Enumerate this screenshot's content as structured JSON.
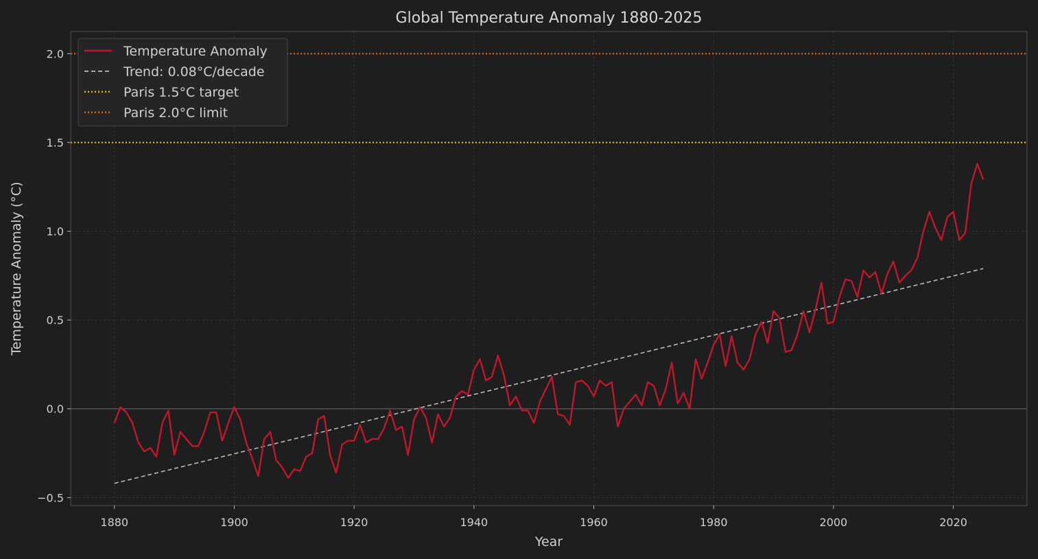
{
  "chart_data": {
    "type": "line",
    "title": "Global Temperature Anomaly 1880-2025",
    "xlabel": "Year",
    "ylabel": "Temperature Anomaly (°C)",
    "xlim": [
      1872.7,
      2032.3
    ],
    "ylim": [
      -0.545,
      2.125
    ],
    "x_ticks": [
      1880,
      1900,
      1920,
      1940,
      1960,
      1980,
      2000,
      2020
    ],
    "y_ticks": [
      -0.5,
      0.0,
      0.5,
      1.0,
      1.5,
      2.0
    ],
    "y_tick_labels": [
      "−0.5",
      "0.0",
      "0.5",
      "1.0",
      "1.5",
      "2.0"
    ],
    "grid": true,
    "legend_position": "top-left",
    "colors": {
      "anomaly": "#c0182a",
      "trend": "#bdbdbd",
      "paris15": "#e6b012",
      "paris20": "#e0620f",
      "zero_line": "#6a6a6a",
      "background": "#1e1e1e",
      "grid": "#333333",
      "frame": "#4a4a4a"
    },
    "series": [
      {
        "name": "Temperature Anomaly",
        "start_year": 1880,
        "values": [
          -0.08,
          0.01,
          -0.02,
          -0.08,
          -0.19,
          -0.24,
          -0.22,
          -0.27,
          -0.08,
          -0.01,
          -0.26,
          -0.13,
          -0.17,
          -0.21,
          -0.21,
          -0.13,
          -0.02,
          -0.02,
          -0.18,
          -0.08,
          0.01,
          -0.06,
          -0.19,
          -0.28,
          -0.38,
          -0.17,
          -0.13,
          -0.29,
          -0.33,
          -0.39,
          -0.34,
          -0.35,
          -0.27,
          -0.25,
          -0.06,
          -0.04,
          -0.26,
          -0.36,
          -0.2,
          -0.18,
          -0.18,
          -0.09,
          -0.19,
          -0.17,
          -0.17,
          -0.11,
          -0.01,
          -0.12,
          -0.1,
          -0.26,
          -0.06,
          0.01,
          -0.05,
          -0.19,
          -0.03,
          -0.1,
          -0.05,
          0.07,
          0.1,
          0.08,
          0.22,
          0.28,
          0.16,
          0.18,
          0.3,
          0.19,
          0.02,
          0.07,
          -0.01,
          -0.01,
          -0.08,
          0.04,
          0.11,
          0.18,
          -0.03,
          -0.04,
          -0.09,
          0.15,
          0.16,
          0.13,
          0.07,
          0.16,
          0.13,
          0.15,
          -0.1,
          0.0,
          0.04,
          0.08,
          0.02,
          0.15,
          0.13,
          0.02,
          0.11,
          0.26,
          0.03,
          0.09,
          0.0,
          0.28,
          0.17,
          0.26,
          0.36,
          0.42,
          0.24,
          0.41,
          0.26,
          0.22,
          0.28,
          0.42,
          0.49,
          0.37,
          0.55,
          0.51,
          0.32,
          0.33,
          0.42,
          0.55,
          0.43,
          0.56,
          0.71,
          0.48,
          0.49,
          0.63,
          0.73,
          0.72,
          0.63,
          0.78,
          0.74,
          0.77,
          0.65,
          0.76,
          0.83,
          0.71,
          0.75,
          0.78,
          0.85,
          1.0,
          1.11,
          1.02,
          0.95,
          1.08,
          1.11,
          0.95,
          0.99,
          1.27,
          1.38,
          1.29
        ]
      },
      {
        "name": "Trend: 0.08°C/decade",
        "style": "dashed",
        "x": [
          1880,
          2025
        ],
        "y": [
          -0.42,
          0.79
        ]
      },
      {
        "name": "Paris 1.5°C target",
        "style": "dotted",
        "y": 1.5
      },
      {
        "name": "Paris 2.0°C limit",
        "style": "dotted",
        "y": 2.0
      }
    ]
  }
}
